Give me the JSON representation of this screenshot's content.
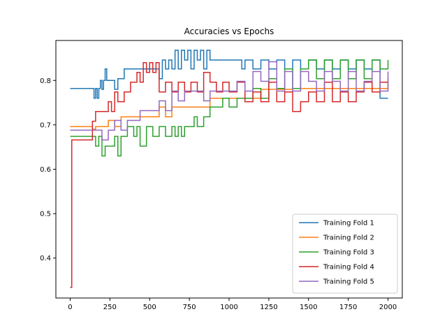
{
  "chart_data": {
    "type": "line",
    "title": "Accuracies vs Epochs",
    "xlabel": "",
    "ylabel": "",
    "xlim": [
      -90,
      2090
    ],
    "ylim": [
      0.31,
      0.89
    ],
    "xticks": [
      0,
      250,
      500,
      750,
      1000,
      1250,
      1500,
      1750,
      2000
    ],
    "yticks": [
      0.4,
      0.5,
      0.6,
      0.7,
      0.8
    ],
    "grid": false,
    "legend_position": "lower-right",
    "series": [
      {
        "name": "Training Fold 1",
        "color": "#1f77b4",
        "x": [
          0,
          140,
          150,
          160,
          170,
          180,
          190,
          200,
          210,
          220,
          230,
          240,
          260,
          280,
          300,
          340,
          380,
          420,
          460,
          500,
          540,
          560,
          580,
          600,
          620,
          640,
          660,
          680,
          700,
          720,
          740,
          760,
          780,
          800,
          820,
          840,
          860,
          880,
          900,
          950,
          1000,
          1050,
          1080,
          1100,
          1150,
          1200,
          1250,
          1300,
          1350,
          1400,
          1450,
          1500,
          1550,
          1600,
          1650,
          1700,
          1750,
          1800,
          1850,
          1900,
          1950,
          2000
        ],
        "y": [
          0.782,
          0.782,
          0.76,
          0.782,
          0.76,
          0.782,
          0.8,
          0.78,
          0.8,
          0.826,
          0.8,
          0.8,
          0.8,
          0.78,
          0.804,
          0.826,
          0.826,
          0.826,
          0.826,
          0.826,
          0.826,
          0.804,
          0.846,
          0.826,
          0.846,
          0.826,
          0.868,
          0.826,
          0.868,
          0.846,
          0.868,
          0.826,
          0.868,
          0.846,
          0.868,
          0.826,
          0.868,
          0.846,
          0.846,
          0.846,
          0.846,
          0.846,
          0.826,
          0.846,
          0.826,
          0.846,
          0.826,
          0.846,
          0.826,
          0.846,
          0.826,
          0.846,
          0.826,
          0.846,
          0.826,
          0.846,
          0.826,
          0.846,
          0.826,
          0.846,
          0.76,
          0.76
        ]
      },
      {
        "name": "Training Fold 2",
        "color": "#ff7f0e",
        "x": [
          0,
          100,
          120,
          140,
          160,
          200,
          240,
          280,
          320,
          360,
          400,
          440,
          480,
          520,
          560,
          600,
          640,
          680,
          720,
          760,
          800,
          840,
          880,
          920,
          960,
          1000,
          1100,
          1200,
          1300,
          1400,
          1500,
          1600,
          1700,
          1800,
          1900,
          2000
        ],
        "y": [
          0.696,
          0.696,
          0.696,
          0.69,
          0.696,
          0.696,
          0.71,
          0.696,
          0.718,
          0.718,
          0.718,
          0.718,
          0.718,
          0.718,
          0.74,
          0.718,
          0.74,
          0.74,
          0.74,
          0.74,
          0.74,
          0.74,
          0.76,
          0.76,
          0.76,
          0.76,
          0.76,
          0.78,
          0.78,
          0.782,
          0.782,
          0.782,
          0.782,
          0.782,
          0.782,
          0.804
        ]
      },
      {
        "name": "Training Fold 3",
        "color": "#2ca02c",
        "x": [
          0,
          60,
          100,
          140,
          160,
          180,
          200,
          220,
          260,
          280,
          300,
          320,
          360,
          400,
          420,
          440,
          480,
          520,
          560,
          600,
          640,
          660,
          680,
          700,
          720,
          760,
          780,
          800,
          840,
          880,
          920,
          960,
          1000,
          1050,
          1100,
          1150,
          1200,
          1250,
          1300,
          1350,
          1400,
          1450,
          1500,
          1550,
          1600,
          1650,
          1700,
          1750,
          1800,
          1850,
          1900,
          1950,
          2000
        ],
        "y": [
          0.674,
          0.674,
          0.674,
          0.674,
          0.652,
          0.674,
          0.63,
          0.652,
          0.652,
          0.674,
          0.63,
          0.674,
          0.696,
          0.674,
          0.696,
          0.652,
          0.696,
          0.674,
          0.696,
          0.674,
          0.696,
          0.674,
          0.696,
          0.674,
          0.696,
          0.696,
          0.718,
          0.696,
          0.718,
          0.74,
          0.74,
          0.76,
          0.74,
          0.76,
          0.76,
          0.782,
          0.76,
          0.804,
          0.782,
          0.826,
          0.782,
          0.826,
          0.846,
          0.804,
          0.846,
          0.804,
          0.846,
          0.804,
          0.846,
          0.804,
          0.846,
          0.826,
          0.846
        ]
      },
      {
        "name": "Training Fold 4",
        "color": "#d62728",
        "x": [
          0,
          5,
          10,
          40,
          80,
          120,
          140,
          160,
          200,
          240,
          260,
          280,
          300,
          340,
          380,
          420,
          440,
          460,
          480,
          500,
          520,
          540,
          560,
          600,
          640,
          680,
          720,
          760,
          800,
          840,
          880,
          920,
          960,
          1000,
          1050,
          1100,
          1150,
          1200,
          1250,
          1300,
          1350,
          1400,
          1450,
          1500,
          1550,
          1600,
          1650,
          1700,
          1750,
          1800,
          1850,
          1900,
          1950,
          2000
        ],
        "y": [
          0.334,
          0.334,
          0.666,
          0.666,
          0.666,
          0.666,
          0.708,
          0.73,
          0.73,
          0.752,
          0.73,
          0.774,
          0.752,
          0.774,
          0.796,
          0.818,
          0.796,
          0.84,
          0.818,
          0.84,
          0.818,
          0.84,
          0.774,
          0.796,
          0.774,
          0.796,
          0.774,
          0.796,
          0.774,
          0.818,
          0.796,
          0.774,
          0.796,
          0.774,
          0.796,
          0.752,
          0.774,
          0.752,
          0.796,
          0.752,
          0.774,
          0.73,
          0.752,
          0.774,
          0.752,
          0.796,
          0.752,
          0.774,
          0.752,
          0.774,
          0.796,
          0.774,
          0.796,
          0.796
        ]
      },
      {
        "name": "Training Fold 5",
        "color": "#9467bd",
        "x": [
          0,
          100,
          140,
          160,
          200,
          240,
          280,
          320,
          360,
          400,
          440,
          480,
          520,
          560,
          600,
          640,
          680,
          720,
          760,
          800,
          840,
          880,
          920,
          960,
          1000,
          1050,
          1100,
          1150,
          1200,
          1250,
          1300,
          1350,
          1400,
          1450,
          1500,
          1550,
          1600,
          1650,
          1700,
          1750,
          1800,
          1850,
          1900,
          1950,
          2000
        ],
        "y": [
          0.688,
          0.688,
          0.688,
          0.688,
          0.666,
          0.688,
          0.71,
          0.688,
          0.71,
          0.71,
          0.732,
          0.732,
          0.732,
          0.754,
          0.732,
          0.776,
          0.754,
          0.776,
          0.776,
          0.776,
          0.754,
          0.776,
          0.776,
          0.776,
          0.776,
          0.798,
          0.776,
          0.82,
          0.798,
          0.842,
          0.776,
          0.82,
          0.776,
          0.82,
          0.798,
          0.776,
          0.82,
          0.798,
          0.776,
          0.82,
          0.776,
          0.798,
          0.82,
          0.776,
          0.82
        ]
      }
    ]
  }
}
